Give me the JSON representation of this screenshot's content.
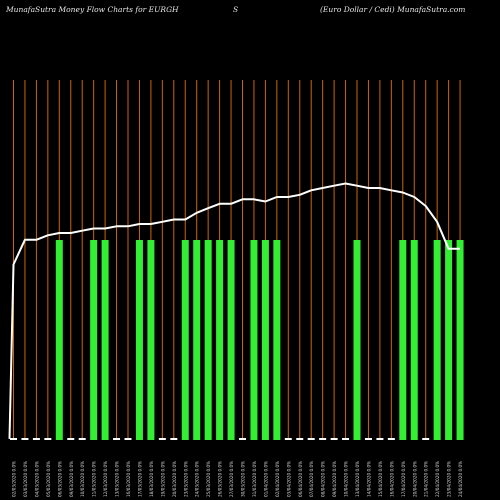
{
  "header": {
    "left": "MunafaSutra  Money Flow  Charts for EURGH",
    "middle": "S",
    "right": "(Euro  Dollar / Cedi) MunafaSutra.com"
  },
  "chart_data": {
    "type": "bar",
    "colors": {
      "background": "#000000",
      "gridline": "#cc6600",
      "positive_bar": "#33ee33",
      "neutral_bar": "#ffffff",
      "line": "#ffffff"
    },
    "categories": [
      "02/03/2020 0.0%",
      "03/03/2020 0.0%",
      "04/03/2020 0.0%",
      "05/03/2020 0.0%",
      "06/03/2020 0.0%",
      "09/03/2020 0.0%",
      "10/03/2020 0.0%",
      "11/03/2020 0.0%",
      "12/03/2020 0.0%",
      "13/03/2020 0.0%",
      "16/03/2020 0.0%",
      "17/03/2020 0.0%",
      "18/03/2020 0.0%",
      "19/03/2020 0.0%",
      "20/03/2020 0.0%",
      "23/03/2020 0.0%",
      "24/03/2020 0.0%",
      "25/03/2020 0.0%",
      "26/03/2020 0.0%",
      "27/03/2020 0.0%",
      "30/03/2020 0.0%",
      "31/03/2020 0.0%",
      "01/04/2020 0.0%",
      "02/04/2020 0.0%",
      "03/04/2020 0.0%",
      "06/04/2020 0.0%",
      "07/04/2020 0.0%",
      "08/04/2020 0.0%",
      "09/04/2020 0.0%",
      "10/04/2020 0.0%",
      "13/04/2020 0.0%",
      "14/04/2020 0.0%",
      "15/04/2020 0.0%",
      "16/04/2020 0.0%",
      "17/04/2020 0.0%",
      "20/04/2020 0.0%",
      "21/04/2020 0.0%",
      "22/04/2020 0.0%",
      "23/04/2020 0.0%",
      "24/04/2020 0.0%"
    ],
    "bars": [
      0,
      0,
      0,
      0,
      1,
      0,
      0,
      1,
      1,
      0,
      0,
      1,
      1,
      0,
      0,
      1,
      1,
      1,
      1,
      1,
      0,
      1,
      1,
      1,
      0,
      0,
      0,
      0,
      0,
      0,
      1,
      0,
      0,
      0,
      1,
      1,
      0,
      1,
      1,
      1
    ],
    "line": [
      7.8,
      8.9,
      8.9,
      9.1,
      9.2,
      9.2,
      9.3,
      9.4,
      9.4,
      9.5,
      9.5,
      9.6,
      9.6,
      9.7,
      9.8,
      9.8,
      10.1,
      10.3,
      10.5,
      10.5,
      10.7,
      10.7,
      10.6,
      10.8,
      10.8,
      10.9,
      11.1,
      11.2,
      11.3,
      11.4,
      11.3,
      11.2,
      11.2,
      11.1,
      11.0,
      10.8,
      10.4,
      9.7,
      8.5,
      8.5
    ],
    "line_start": 0.05,
    "ylim": [
      0,
      16
    ]
  }
}
